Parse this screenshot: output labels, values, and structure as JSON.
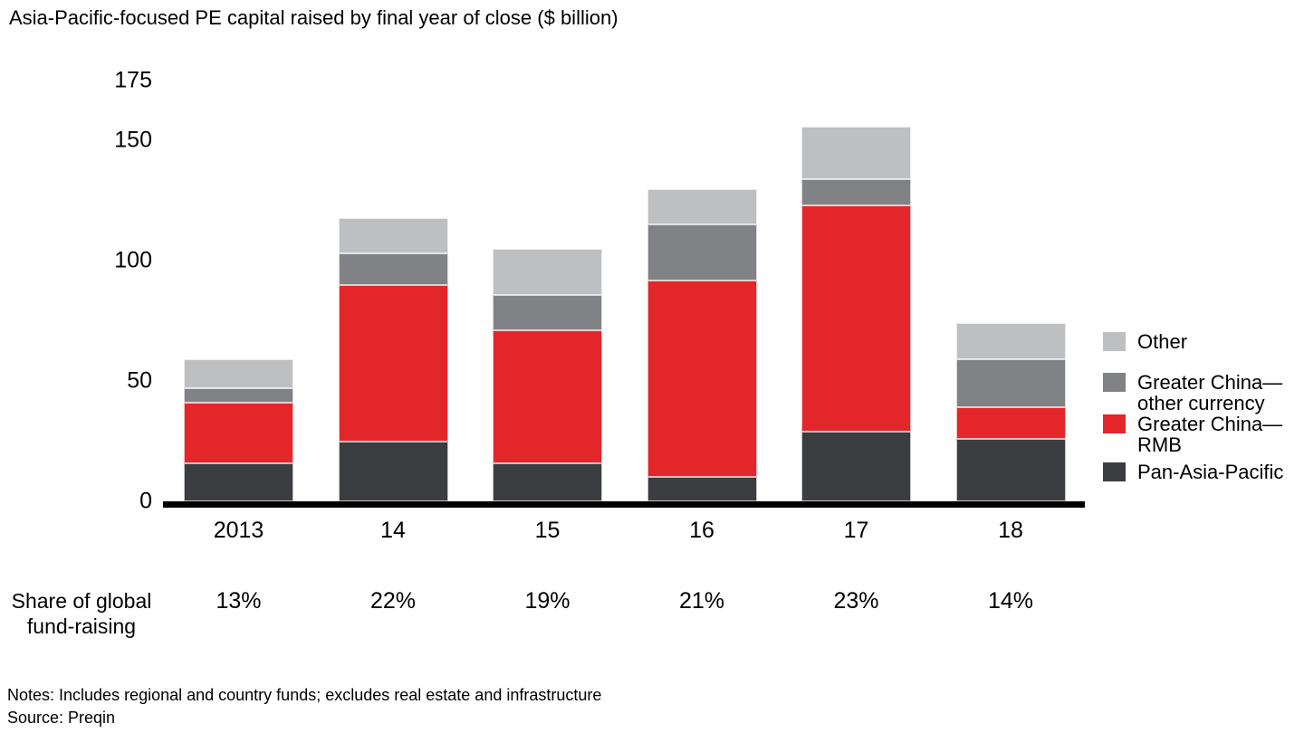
{
  "title": "Asia-Pacific-focused PE capital raised by final year of close ($ billion)",
  "chart_data": {
    "type": "bar",
    "stacked": true,
    "title": "Asia-Pacific-focused PE capital raised by final year of close ($ billion)",
    "categories": [
      "2013",
      "14",
      "15",
      "16",
      "17",
      "18"
    ],
    "series": [
      {
        "name": "Pan-Asia-Pacific",
        "color": "#3b3d40",
        "values": [
          16,
          25,
          16,
          10,
          29,
          26
        ]
      },
      {
        "name": "Greater China—RMB",
        "color": "#e3262a",
        "values": [
          25,
          65,
          55,
          82,
          94,
          13
        ]
      },
      {
        "name": "Greater China—other currency",
        "color": "#818285",
        "values": [
          6,
          13,
          15,
          23,
          11,
          20
        ]
      },
      {
        "name": "Other",
        "color": "#bdbfc1",
        "values": [
          12,
          15,
          19,
          15,
          22,
          15
        ]
      }
    ],
    "totals": [
      59,
      118,
      105,
      130,
      156,
      74
    ],
    "yticks": [
      0,
      50,
      100,
      150,
      175
    ],
    "ylim": [
      0,
      175
    ],
    "xlabel": "",
    "ylabel": "",
    "grid": false,
    "legend_position": "right"
  },
  "legend": {
    "items": [
      {
        "label": "Other",
        "lines": [
          "Other"
        ],
        "color": "#bdbfc1"
      },
      {
        "label": "Greater China—other currency",
        "lines": [
          "Greater China—",
          "other currency"
        ],
        "color": "#818285"
      },
      {
        "label": "Greater China—RMB",
        "lines": [
          "Greater China—",
          "RMB"
        ],
        "color": "#e3262a"
      },
      {
        "label": "Pan-Asia-Pacific",
        "lines": [
          "Pan-Asia-Pacific"
        ],
        "color": "#3b3d40"
      }
    ]
  },
  "share_row": {
    "label_line1": "Share of global",
    "label_line2": "fund-raising",
    "values": [
      "13%",
      "22%",
      "19%",
      "21%",
      "23%",
      "14%"
    ]
  },
  "notes_line": "Notes: Includes regional and country funds; excludes real estate and infrastructure",
  "source_line": "Source: Preqin",
  "colors": {
    "axis": "#000000",
    "text": "#000000"
  }
}
